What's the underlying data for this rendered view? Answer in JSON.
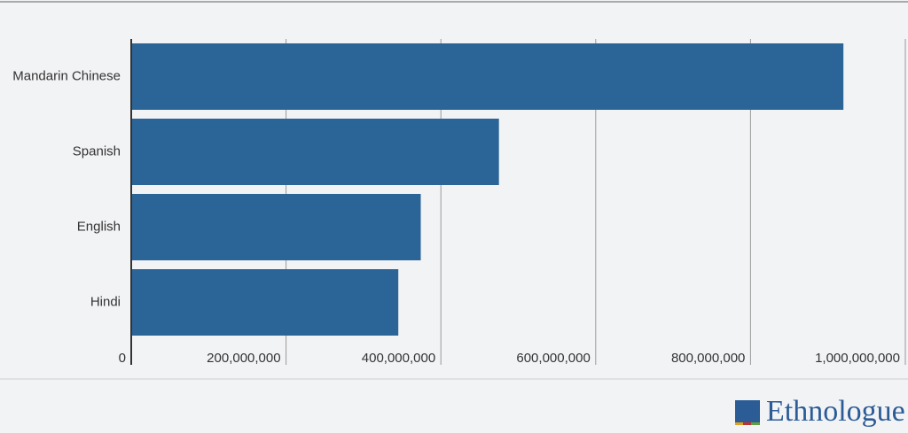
{
  "chart_data": {
    "type": "barh",
    "categories": [
      "Mandarin Chinese",
      "Spanish",
      "English",
      "Hindi"
    ],
    "values": [
      920000000,
      475000000,
      374000000,
      345000000
    ],
    "color": "#2b6496",
    "xlim": [
      0,
      1000000000
    ],
    "xticks": [
      0,
      {
        "value": 200000000,
        "label": "200,000,000"
      },
      {
        "value": 400000000,
        "label": "400,000,000"
      },
      {
        "value": 600000000,
        "label": "600,000,000"
      },
      {
        "value": 800000000,
        "label": "800,000,000"
      },
      {
        "value": 1000000000,
        "label": "1,000,000,000"
      }
    ],
    "grid": true
  },
  "logo": "Ethnologue"
}
